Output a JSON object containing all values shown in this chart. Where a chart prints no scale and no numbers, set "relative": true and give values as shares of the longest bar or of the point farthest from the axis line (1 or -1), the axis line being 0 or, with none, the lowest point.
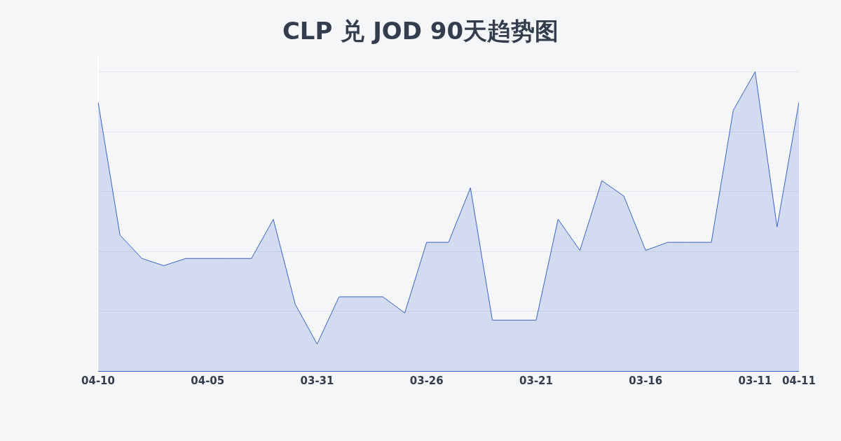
{
  "chart_data": {
    "type": "area",
    "title": "CLP 兑 JOD 90天趋势图",
    "relative": true,
    "categories": [
      "04-10",
      null,
      null,
      null,
      null,
      "04-05",
      null,
      null,
      null,
      null,
      "03-31",
      null,
      null,
      null,
      null,
      "03-26",
      null,
      null,
      null,
      null,
      "03-21",
      null,
      null,
      null,
      null,
      "03-16",
      null,
      null,
      null,
      null,
      "03-11",
      null,
      "04-11"
    ],
    "series": [
      {
        "color": "#3a62c8",
        "values": [
          0.898,
          0.454,
          0.376,
          0.352,
          0.376,
          0.376,
          0.376,
          0.376,
          0.507,
          0.223,
          0.09,
          0.248,
          0.248,
          0.248,
          0.194,
          0.43,
          0.43,
          0.612,
          0.17,
          0.17,
          0.17,
          0.507,
          0.403,
          0.636,
          0.585,
          0.403,
          0.43,
          0.43,
          0.43,
          0.871,
          1.0,
          0.481,
          0.898
        ]
      }
    ],
    "grid": "y",
    "marker": "none",
    "line_style": "solid"
  }
}
